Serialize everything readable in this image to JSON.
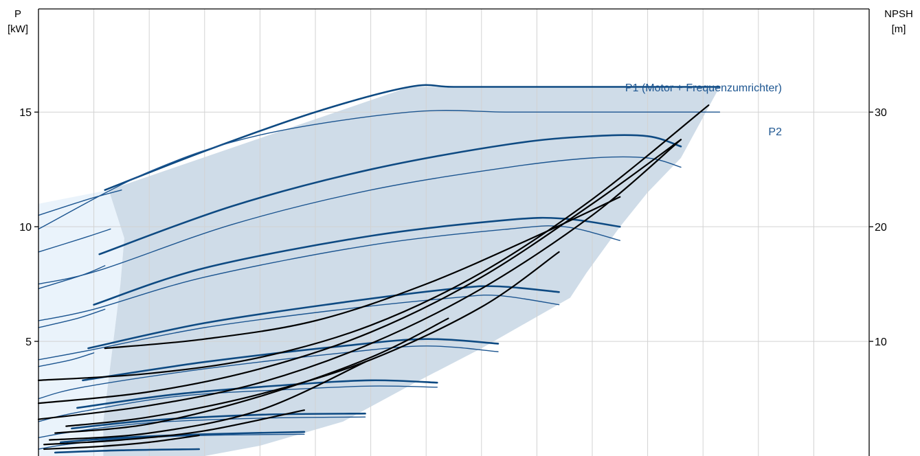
{
  "chart_data": {
    "type": "line",
    "title": "",
    "left_axis": {
      "label_line1": "P",
      "label_line2": "[kW]",
      "range": [
        0,
        19.5
      ],
      "ticks": [
        5,
        10,
        15
      ],
      "tick_labels": [
        "5",
        "10",
        "15"
      ]
    },
    "right_axis": {
      "label_line1": "NPSH",
      "label_line2": "[m]",
      "range": [
        0,
        39
      ],
      "ticks": [
        10,
        20,
        30
      ],
      "tick_labels": [
        "10",
        "20",
        "30"
      ]
    },
    "x_axis": {
      "range": [
        0,
        15
      ],
      "gridlines": [
        1,
        2,
        3,
        4,
        5,
        6,
        7,
        8,
        9,
        10,
        11,
        12,
        13,
        14,
        15
      ],
      "tick_labels": []
    },
    "grid": true,
    "colors": {
      "p1": "#0e4a82",
      "p2": "#1c5590",
      "npsh": "#000000",
      "region_main": "#cfdce8",
      "region_light": "#eaf3fb",
      "grid": "#d2d2d2",
      "axis": "#000000",
      "label": "#1c5590"
    },
    "labels": {
      "p1": "P1 (Motor + Frequenzumrichter)",
      "p2": "P2"
    },
    "regions": {
      "main": [
        [
          1.17,
          0
        ],
        [
          1.17,
          1.5
        ],
        [
          1.3,
          4
        ],
        [
          1.48,
          7.5
        ],
        [
          1.55,
          9.5
        ],
        [
          1.27,
          11.6
        ],
        [
          6.7,
          16.1
        ],
        [
          12.3,
          16.1
        ],
        [
          12.3,
          16.1
        ],
        [
          11.6,
          13.0
        ],
        [
          11.0,
          11.5
        ],
        [
          10.5,
          10.0
        ],
        [
          9.9,
          8.0
        ],
        [
          9.6,
          6.9
        ],
        [
          8.0,
          4.7
        ],
        [
          6.8,
          3.2
        ],
        [
          5.5,
          1.5
        ],
        [
          4.0,
          0.45
        ],
        [
          3.0,
          0
        ]
      ],
      "light": [
        [
          0,
          0
        ],
        [
          0,
          11.0
        ],
        [
          1.27,
          11.6
        ],
        [
          1.55,
          9.5
        ],
        [
          1.48,
          7.5
        ],
        [
          1.3,
          4
        ],
        [
          1.17,
          1.5
        ],
        [
          1.17,
          0
        ]
      ]
    },
    "series": [
      {
        "name": "P1 (Motor + Frequenzumrichter)",
        "kind": "p1",
        "x": [
          1.2,
          3.0,
          5.0,
          6.7,
          7.5,
          9.0,
          11.0,
          12.3
        ],
        "values": [
          11.6,
          13.3,
          15.0,
          16.1,
          16.1,
          16.1,
          16.1,
          16.1
        ]
      },
      {
        "name": "P2",
        "kind": "p2",
        "x": [
          0,
          2.0,
          4.0,
          6.7,
          8.5,
          10.5,
          12.3
        ],
        "values": [
          9.9,
          12.4,
          14.0,
          15.0,
          15.0,
          15.0,
          15.0
        ]
      },
      {
        "kind": "p2",
        "x": [
          0,
          0.9,
          1.5
        ],
        "values": [
          10.5,
          11.2,
          11.6
        ]
      },
      {
        "kind": "p1",
        "x": [
          1.1,
          3.5,
          6.0,
          8.5,
          10.0,
          11.0,
          11.6
        ],
        "values": [
          8.8,
          10.9,
          12.5,
          13.6,
          13.95,
          13.95,
          13.5
        ]
      },
      {
        "kind": "p2",
        "x": [
          0,
          1.1,
          3.5,
          6.0,
          8.5,
          10.0,
          11.0,
          11.6
        ],
        "values": [
          7.5,
          8.1,
          10.1,
          11.6,
          12.6,
          13.0,
          13.0,
          12.6
        ]
      },
      {
        "kind": "p2",
        "x": [
          0,
          0.8,
          1.3
        ],
        "values": [
          8.9,
          9.5,
          9.9
        ]
      },
      {
        "kind": "p1",
        "x": [
          1.0,
          3.0,
          6.0,
          8.5,
          9.5,
          10.5
        ],
        "values": [
          6.6,
          8.2,
          9.6,
          10.3,
          10.35,
          10.0
        ]
      },
      {
        "kind": "p2",
        "x": [
          0,
          1.0,
          3.0,
          6.0,
          8.5,
          9.5,
          10.5
        ],
        "values": [
          5.9,
          6.4,
          7.8,
          9.2,
          9.9,
          10.0,
          9.4
        ]
      },
      {
        "kind": "p2",
        "x": [
          0,
          0.8,
          1.2
        ],
        "values": [
          7.3,
          7.9,
          8.3
        ]
      },
      {
        "kind": "p1",
        "x": [
          0.9,
          3.0,
          5.5,
          7.5,
          8.3,
          9.4
        ],
        "values": [
          4.7,
          5.8,
          6.7,
          7.3,
          7.4,
          7.15
        ]
      },
      {
        "kind": "p2",
        "x": [
          0,
          0.9,
          3.0,
          5.5,
          7.5,
          8.3,
          9.4
        ],
        "values": [
          4.2,
          4.6,
          5.6,
          6.4,
          6.9,
          7.0,
          6.6
        ]
      },
      {
        "kind": "p2",
        "x": [
          0,
          0.7,
          1.2
        ],
        "values": [
          5.6,
          6.0,
          6.4
        ]
      },
      {
        "kind": "p1",
        "x": [
          0.8,
          3.0,
          5.5,
          7.0,
          8.3
        ],
        "values": [
          3.3,
          4.1,
          4.8,
          5.1,
          4.9
        ]
      },
      {
        "kind": "p2",
        "x": [
          0,
          0.8,
          3.0,
          5.5,
          7.0,
          8.3
        ],
        "values": [
          2.5,
          3.0,
          3.8,
          4.5,
          4.8,
          4.55
        ]
      },
      {
        "kind": "p2",
        "x": [
          0,
          0.6,
          1.0
        ],
        "values": [
          3.9,
          4.2,
          4.5
        ]
      },
      {
        "kind": "p1",
        "x": [
          0.7,
          2.5,
          4.5,
          6.0,
          7.2
        ],
        "values": [
          2.1,
          2.7,
          3.1,
          3.3,
          3.2
        ]
      },
      {
        "kind": "p2",
        "x": [
          0,
          0.7,
          2.5,
          4.5,
          6.0,
          7.2
        ],
        "values": [
          1.5,
          1.9,
          2.6,
          2.9,
          3.05,
          3.0
        ]
      },
      {
        "kind": "p1",
        "x": [
          0.6,
          2.0,
          4.0,
          5.9
        ],
        "values": [
          1.2,
          1.55,
          1.8,
          1.85
        ]
      },
      {
        "kind": "p2",
        "x": [
          0,
          0.6,
          2.0,
          4.0,
          5.9
        ],
        "values": [
          0.8,
          1.05,
          1.45,
          1.65,
          1.7
        ]
      },
      {
        "kind": "p1",
        "x": [
          0.4,
          1.5,
          3.0,
          4.8
        ],
        "values": [
          0.6,
          0.8,
          0.95,
          1.05
        ]
      },
      {
        "kind": "p2",
        "x": [
          0,
          0.5,
          1.5,
          3.0,
          4.8
        ],
        "values": [
          0.3,
          0.5,
          0.75,
          0.9,
          0.95
        ]
      },
      {
        "kind": "p1",
        "x": [
          0.3,
          1.5,
          2.9
        ],
        "values": [
          0.15,
          0.25,
          0.3
        ]
      },
      {
        "kind": "npsh",
        "x": [
          0,
          2,
          4,
          6,
          8,
          10,
          12.1
        ],
        "values": [
          3.3,
          3.6,
          4.3,
          5.7,
          8.0,
          11.2,
          15.3
        ]
      },
      {
        "kind": "npsh",
        "x": [
          0,
          2,
          4,
          6,
          8,
          10,
          11.6
        ],
        "values": [
          2.3,
          2.8,
          3.8,
          5.4,
          7.8,
          11.0,
          13.8
        ]
      },
      {
        "kind": "npsh",
        "x": [
          0,
          2,
          4,
          6,
          8,
          10,
          11.6
        ],
        "values": [
          1.6,
          2.2,
          3.2,
          4.9,
          7.3,
          10.5,
          13.8
        ]
      },
      {
        "kind": "npsh",
        "x": [
          1.2,
          3,
          5,
          7,
          9,
          10.5
        ],
        "values": [
          4.7,
          5.1,
          5.9,
          7.5,
          9.6,
          11.3
        ]
      },
      {
        "kind": "npsh",
        "x": [
          0.5,
          2,
          4,
          6,
          8,
          9.4
        ],
        "values": [
          1.3,
          1.7,
          2.7,
          4.2,
          6.5,
          8.9
        ]
      },
      {
        "kind": "npsh",
        "x": [
          0.3,
          2,
          4,
          6,
          7.4
        ],
        "values": [
          1.0,
          1.4,
          2.6,
          4.3,
          6.0
        ]
      },
      {
        "kind": "npsh",
        "x": [
          0.2,
          2,
          4,
          5.9
        ],
        "values": [
          0.7,
          1.0,
          2.0,
          4.1
        ]
      },
      {
        "kind": "npsh",
        "x": [
          0.1,
          1.5,
          3,
          4.8
        ],
        "values": [
          0.5,
          0.7,
          1.1,
          2.0
        ]
      },
      {
        "kind": "npsh",
        "x": [
          0.1,
          1.0,
          2.0,
          2.9
        ],
        "values": [
          0.3,
          0.4,
          0.6,
          0.9
        ]
      }
    ]
  }
}
